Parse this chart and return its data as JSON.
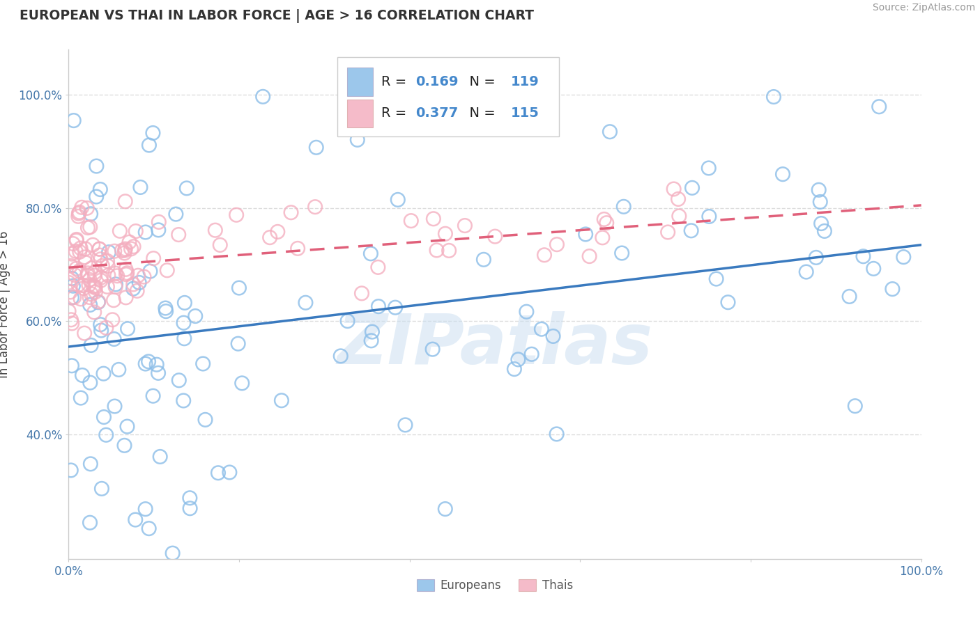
{
  "title": "EUROPEAN VS THAI IN LABOR FORCE | AGE > 16 CORRELATION CHART",
  "source_text": "Source: ZipAtlas.com",
  "ylabel": "In Labor Force | Age > 16",
  "xlim": [
    0.0,
    1.0
  ],
  "ylim": [
    0.18,
    1.08
  ],
  "x_ticks": [
    0.0,
    0.2,
    0.4,
    0.6,
    0.8,
    1.0
  ],
  "x_tick_labels": [
    "0.0%",
    "",
    "",
    "",
    "",
    "100.0%"
  ],
  "y_ticks": [
    0.4,
    0.6,
    0.8,
    1.0
  ],
  "y_tick_labels": [
    "40.0%",
    "60.0%",
    "80.0%",
    "100.0%"
  ],
  "background_color": "#ffffff",
  "grid_color": "#dddddd",
  "blue_color": "#8bbde8",
  "pink_color": "#f4afc0",
  "blue_line_color": "#3a7abf",
  "pink_line_color": "#e0607a",
  "blue_text_color": "#4488cc",
  "pink_text_color": "#e06080",
  "watermark": "ZIPatlas",
  "blue_R": 0.169,
  "blue_N": 119,
  "pink_R": 0.377,
  "pink_N": 115,
  "blue_line_y0": 0.555,
  "blue_line_y1": 0.735,
  "pink_line_y0": 0.695,
  "pink_line_y1": 0.805
}
